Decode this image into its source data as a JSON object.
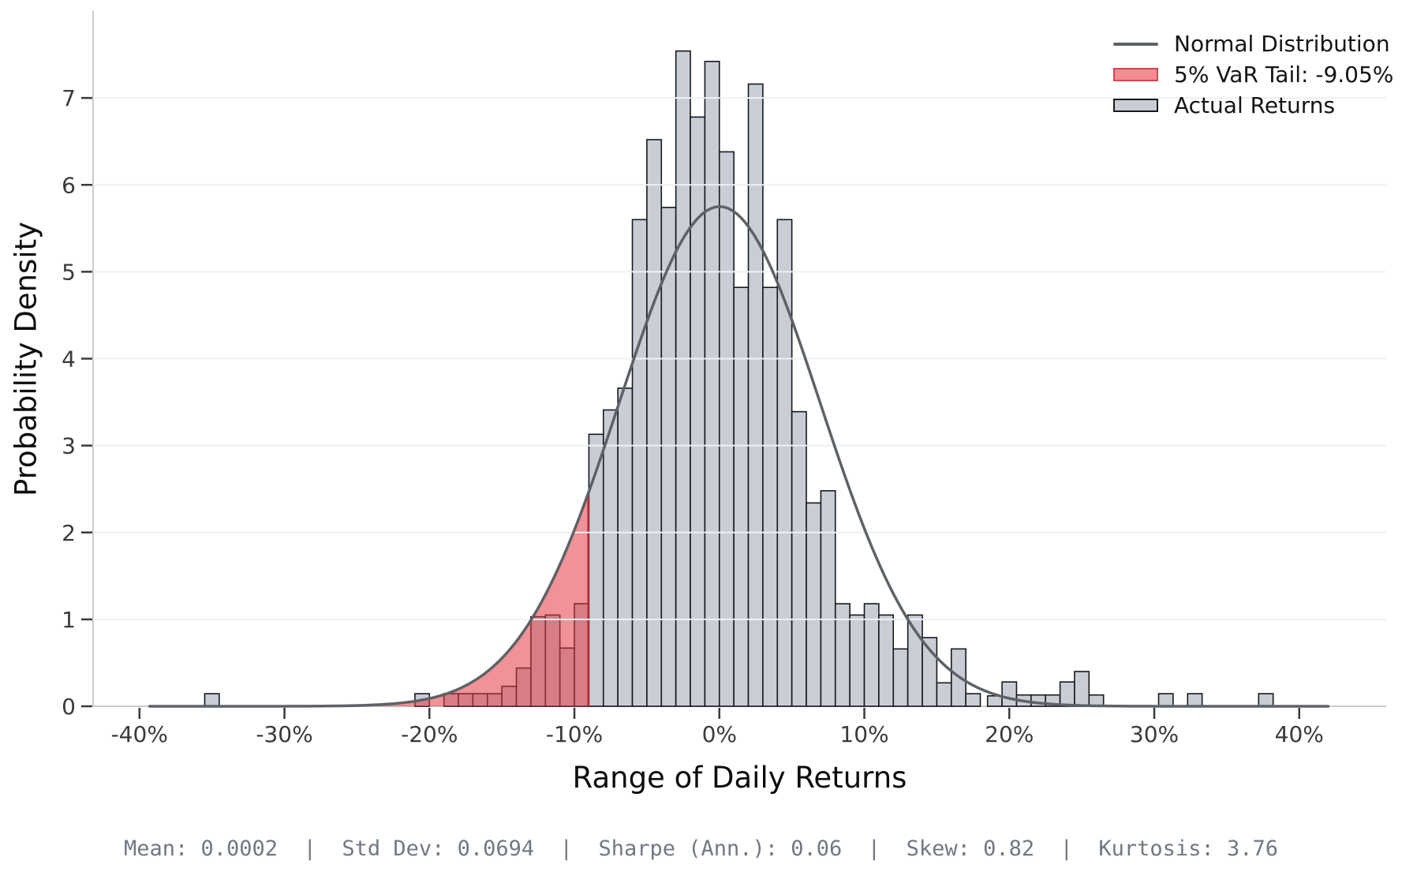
{
  "chart_data": {
    "type": "bar",
    "subtype": "histogram-with-density-overlay",
    "title": "",
    "xlabel": "Range of Daily Returns",
    "ylabel": "Probability Density",
    "xlim_pct": [
      -43.2,
      46.0
    ],
    "ylim": [
      0,
      8
    ],
    "grid": "horizontal",
    "legend_position": "upper-right",
    "x_ticks": [
      {
        "value": -40,
        "label": "-40%"
      },
      {
        "value": -30,
        "label": "-30%"
      },
      {
        "value": -20,
        "label": "-20%"
      },
      {
        "value": -10,
        "label": "-10%"
      },
      {
        "value": 0,
        "label": "0%"
      },
      {
        "value": 10,
        "label": "10%"
      },
      {
        "value": 20,
        "label": "20%"
      },
      {
        "value": 30,
        "label": "30%"
      },
      {
        "value": 40,
        "label": "40%"
      }
    ],
    "y_ticks": [
      {
        "value": 0,
        "label": "0"
      },
      {
        "value": 1,
        "label": "1"
      },
      {
        "value": 2,
        "label": "2"
      },
      {
        "value": 3,
        "label": "3"
      },
      {
        "value": 4,
        "label": "4"
      },
      {
        "value": 5,
        "label": "5"
      },
      {
        "value": 6,
        "label": "6"
      },
      {
        "value": 7,
        "label": "7"
      }
    ],
    "histogram": {
      "series_name": "Actual Returns",
      "bin_width_pct": 1.0,
      "bars_center_height": [
        [
          -35.0,
          0.145
        ],
        [
          -20.5,
          0.145
        ],
        [
          -18.5,
          0.145
        ],
        [
          -17.5,
          0.145
        ],
        [
          -16.5,
          0.145
        ],
        [
          -15.5,
          0.145
        ],
        [
          -14.5,
          0.23
        ],
        [
          -13.5,
          0.44
        ],
        [
          -12.5,
          1.03
        ],
        [
          -11.5,
          1.05
        ],
        [
          -10.5,
          0.67
        ],
        [
          -9.5,
          1.18
        ],
        [
          -8.5,
          3.13
        ],
        [
          -7.5,
          3.41
        ],
        [
          -6.5,
          3.66
        ],
        [
          -5.5,
          5.6
        ],
        [
          -4.5,
          6.52
        ],
        [
          -3.5,
          5.74
        ],
        [
          -2.5,
          7.54
        ],
        [
          -1.5,
          6.78
        ],
        [
          -0.5,
          7.42
        ],
        [
          0.5,
          6.38
        ],
        [
          1.5,
          4.82
        ],
        [
          2.5,
          7.16
        ],
        [
          3.5,
          4.82
        ],
        [
          4.5,
          5.6
        ],
        [
          5.5,
          3.39
        ],
        [
          6.5,
          2.34
        ],
        [
          7.5,
          2.48
        ],
        [
          8.5,
          1.18
        ],
        [
          9.5,
          1.05
        ],
        [
          10.5,
          1.18
        ],
        [
          11.5,
          1.05
        ],
        [
          12.5,
          0.66
        ],
        [
          13.5,
          1.05
        ],
        [
          14.5,
          0.79
        ],
        [
          15.5,
          0.27
        ],
        [
          16.5,
          0.66
        ],
        [
          17.5,
          0.145
        ],
        [
          19.0,
          0.12
        ],
        [
          20.0,
          0.28
        ],
        [
          21.0,
          0.13
        ],
        [
          22.0,
          0.13
        ],
        [
          23.0,
          0.13
        ],
        [
          24.0,
          0.28
        ],
        [
          25.0,
          0.4
        ],
        [
          26.0,
          0.13
        ],
        [
          30.8,
          0.145
        ],
        [
          32.8,
          0.145
        ],
        [
          37.7,
          0.145
        ]
      ]
    },
    "normal_curve": {
      "series_name": "Normal Distribution",
      "mean_pct": 0.02,
      "std_pct": 6.94,
      "peak_density": 5.75,
      "draw_range_pct": [
        -39.3,
        42.0
      ]
    },
    "var_tail": {
      "confidence": "5%",
      "threshold_pct": -9.05,
      "label": "5% VaR Tail: -9.05%"
    },
    "colors": {
      "bar_fill": "#c9ced6",
      "bar_edge": "#17191b",
      "tail_fill": "#e23b43",
      "tail_fill_opacity": 0.55,
      "tail_edge": "#ce2f38",
      "curve": "#5d6267",
      "grid": "#eef0f3",
      "spine": "#c9cbcd",
      "tick": "#3a3a3a",
      "tick_label": "#3a3a3a"
    }
  },
  "legend": {
    "items": [
      {
        "type": "line",
        "label": "Normal Distribution"
      },
      {
        "type": "patch-red",
        "label": "5% VaR Tail: -9.05%"
      },
      {
        "type": "patch-gray",
        "label": "Actual Returns"
      }
    ]
  },
  "stats_line": "Mean: 0.0002  |  Std Dev: 0.0694  |  Sharpe (Ann.): 0.06  |  Skew: 0.82  |  Kurtosis: 3.76"
}
